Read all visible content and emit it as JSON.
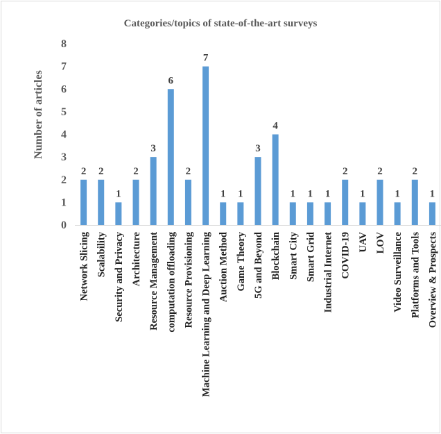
{
  "chart_data": {
    "type": "bar",
    "title": "Categories/topics of state-of-the-art surveys",
    "xlabel": "",
    "ylabel": "Number of articles",
    "ylim": [
      0,
      8
    ],
    "yticks": [
      "0",
      "1",
      "2",
      "3",
      "4",
      "5",
      "6",
      "7",
      "8"
    ],
    "grid": false,
    "legend": "none",
    "bar_color": "#5b9bd5",
    "categories": [
      "Network Slicing",
      "Scalability",
      "Security and Privacy",
      "Architecture",
      "Resource Management",
      "computation offloading",
      "Resource Provisioning",
      "Machine Learning and Deep Learning",
      "Auction Method",
      "Game Theory",
      "5G and Beyond",
      "Blockchain",
      "Smart City",
      "Smart Grid",
      "Industrial Internet",
      "COVID-19",
      "UAV",
      "LOV",
      "Video Surveillance",
      "Platforms and Tools",
      "Overview & Prospects"
    ],
    "values": [
      2,
      2,
      1,
      2,
      3,
      6,
      2,
      7,
      1,
      1,
      3,
      4,
      1,
      1,
      1,
      2,
      1,
      2,
      1,
      2,
      1
    ]
  }
}
